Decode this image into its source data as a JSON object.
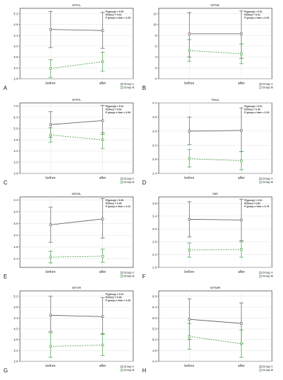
{
  "colors": {
    "group_a": "#555555",
    "group_b": "#3a9a3a",
    "frame": "#333333",
    "grid": "#e2e2e2"
  },
  "chart_data": [
    {
      "type": "line",
      "letter": "A",
      "title": "MTAL",
      "stats": [
        "P(group) < 0.00",
        "P(time) = 0.02",
        "P group x time = 0.25"
      ],
      "categories": [
        "before",
        "after"
      ],
      "yticks": [
        "2.8",
        "3.2",
        "3.6",
        "4.0",
        "4.4",
        "4.8",
        "5.2"
      ],
      "ylim": [
        2.8,
        5.4
      ],
      "series": [
        {
          "name": "Group A",
          "values": [
            4.62,
            4.58
          ],
          "lower": [
            3.95,
            3.92
          ],
          "upper": [
            5.28,
            5.25
          ]
        },
        {
          "name": "Group B",
          "values": [
            3.18,
            3.43
          ],
          "lower": [
            2.85,
            3.08
          ],
          "upper": [
            3.5,
            3.78
          ]
        }
      ],
      "grid": true,
      "legend": "bottom-right"
    },
    {
      "type": "line",
      "letter": "B",
      "title": "MTML",
      "stats": [
        "P(group) < 0.01",
        "P(time) = 0.01",
        "P group x time = 0.00"
      ],
      "categories": [
        "before",
        "after"
      ],
      "yticks": [
        "0",
        "2",
        "4",
        "6",
        "8",
        "10",
        "12"
      ],
      "ylim": [
        0,
        13
      ],
      "series": [
        {
          "name": "Group A",
          "values": [
            8.3,
            8.3
          ],
          "lower": [
            4.0,
            3.8
          ],
          "upper": [
            12.2,
            12.5
          ]
        },
        {
          "name": "Group B",
          "values": [
            5.2,
            4.6
          ],
          "lower": [
            3.2,
            2.8
          ],
          "upper": [
            7.2,
            6.4
          ]
        }
      ],
      "grid": true,
      "legend": "bottom-right"
    },
    {
      "type": "line",
      "letter": "C",
      "title": "MTPL",
      "stats": [
        "P(group) < 0.01",
        "P(time) = 0.06",
        "P group x time = 0.09"
      ],
      "categories": [
        "before",
        "after"
      ],
      "yticks": [
        "2.8",
        "3.5",
        "4.2",
        "4.9",
        "5.6",
        "6.3",
        "7.0"
      ],
      "ylim": [
        2.8,
        7.2
      ],
      "series": [
        {
          "name": "Group A",
          "values": [
            5.85,
            6.1
          ],
          "lower": [
            5.05,
            5.25
          ],
          "upper": [
            6.65,
            7.05
          ]
        },
        {
          "name": "Group B",
          "values": [
            5.2,
            4.9
          ],
          "lower": [
            4.75,
            4.35
          ],
          "upper": [
            5.65,
            5.35
          ]
        }
      ],
      "grid": true,
      "legend": "bottom-right"
    },
    {
      "type": "line",
      "letter": "D",
      "title": "TMJL",
      "stats": [
        "P(group) < 0.01",
        "P(time) = 0.49",
        "P group x time = 0.15"
      ],
      "categories": [
        "before",
        "after"
      ],
      "yticks": [
        "2.4",
        "2.8",
        "3.2",
        "3.6",
        "4.0",
        "4.4"
      ],
      "ylim": [
        2.4,
        4.4
      ],
      "series": [
        {
          "name": "Group A",
          "values": [
            3.6,
            3.62
          ],
          "lower": [
            3.22,
            3.02
          ],
          "upper": [
            4.0,
            4.26
          ]
        },
        {
          "name": "Group B",
          "values": [
            2.82,
            2.76
          ],
          "lower": [
            2.58,
            2.5
          ],
          "upper": [
            3.08,
            3.02
          ]
        }
      ],
      "grid": true,
      "legend": "bottom-right"
    },
    {
      "type": "line",
      "letter": "E",
      "title": "MOSL",
      "stats": [
        "P(group) < 0.00",
        "P(time) = 0.40",
        "P group x time = 0.12"
      ],
      "categories": [
        "before",
        "after"
      ],
      "yticks": [
        "2.4",
        "2.8",
        "3.2",
        "3.6",
        "4.0",
        "4.4"
      ],
      "ylim": [
        2.1,
        4.5
      ],
      "series": [
        {
          "name": "Group A",
          "values": [
            3.55,
            3.75
          ],
          "lower": [
            2.95,
            3.1
          ],
          "upper": [
            4.15,
            4.45
          ]
        },
        {
          "name": "Group B",
          "values": [
            2.45,
            2.48
          ],
          "lower": [
            2.25,
            2.28
          ],
          "upper": [
            2.65,
            2.72
          ]
        }
      ],
      "grid": true,
      "legend": "bottom-right"
    },
    {
      "type": "line",
      "letter": "F",
      "title": "MR",
      "stats": [
        "P(group) < 0.01",
        "P(time) = 0.82",
        "P group x time = 0.76"
      ],
      "categories": [
        "before",
        "after"
      ],
      "yticks": [
        "1.8",
        "2.2",
        "2.6",
        "3.0",
        "3.4",
        "3.8"
      ],
      "ylim": [
        1.8,
        4.0
      ],
      "series": [
        {
          "name": "Group A",
          "values": [
            3.3,
            3.28
          ],
          "lower": [
            2.75,
            2.63
          ],
          "upper": [
            3.85,
            3.93
          ]
        },
        {
          "name": "Group B",
          "values": [
            2.34,
            2.36
          ],
          "lower": [
            2.12,
            2.12
          ],
          "upper": [
            2.56,
            2.6
          ]
        }
      ],
      "grid": true,
      "legend": "bottom-right"
    },
    {
      "type": "line",
      "letter": "G",
      "title": "MTAR",
      "stats": [
        "P(group) < 0.01",
        "P(time) = 0.46",
        "P group x time = 0.33"
      ],
      "categories": [
        "before",
        "after"
      ],
      "yticks": [
        "2.8",
        "3.2",
        "3.6",
        "4.0",
        "4.4",
        "4.8",
        "5.2"
      ],
      "ylim": [
        2.8,
        5.4
      ],
      "series": [
        {
          "name": "Group A",
          "values": [
            4.5,
            4.45
          ],
          "lower": [
            3.9,
            3.8
          ],
          "upper": [
            5.2,
            5.15
          ]
        },
        {
          "name": "Group B",
          "values": [
            3.35,
            3.4
          ],
          "lower": [
            2.95,
            3.02
          ],
          "upper": [
            3.85,
            3.82
          ]
        }
      ],
      "grid": true,
      "legend": "bottom-right"
    },
    {
      "type": "line",
      "letter": "H",
      "title": "MTMR",
      "stats": [],
      "categories": [
        "before",
        "after"
      ],
      "yticks": [
        "4.4",
        "4.8",
        "5.2",
        "5.6",
        "6.0",
        "6.4",
        "6.8"
      ],
      "ylim": [
        4.4,
        7.0
      ],
      "series": [
        {
          "name": "Group A",
          "values": [
            5.95,
            5.8
          ],
          "lower": [
            5.2,
            5.05
          ],
          "upper": [
            6.7,
            6.55
          ]
        },
        {
          "name": "Group B",
          "values": [
            5.32,
            5.05
          ],
          "lower": [
            4.85,
            4.55
          ],
          "upper": [
            5.8,
            5.55
          ]
        }
      ],
      "grid": true,
      "legend": "bottom-right"
    }
  ]
}
